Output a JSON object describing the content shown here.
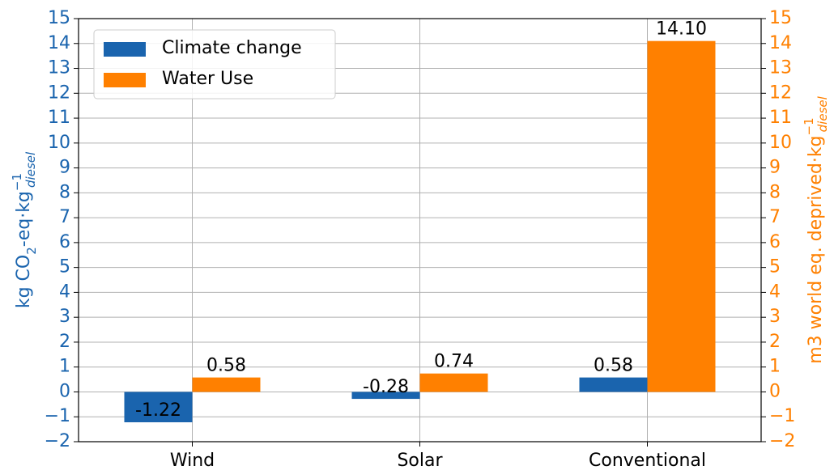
{
  "chart_data": {
    "type": "bar",
    "categories": [
      "Wind",
      "Solar",
      "Conventional"
    ],
    "series": [
      {
        "name": "Climate change",
        "color": "#1a64ae",
        "values": [
          -1.22,
          -0.28,
          0.58
        ],
        "value_labels": [
          "-1.22",
          "-0.28",
          "0.58"
        ]
      },
      {
        "name": "Water Use",
        "color": "#ff8000",
        "axis": "y2",
        "values": [
          0.58,
          0.74,
          14.1
        ],
        "value_labels": [
          "0.58",
          "0.74",
          "14.10"
        ]
      }
    ],
    "y_label": [
      "kg CO",
      "2",
      "-eq·kg",
      "−1",
      "diesel"
    ],
    "y2_label": [
      "m3 world eq. deprived·kg",
      "−1",
      "diesel"
    ],
    "ylim": [
      -2,
      15
    ],
    "yticks": [
      {
        "value": -2,
        "label": "−2"
      },
      {
        "value": -1,
        "label": "−1"
      },
      0,
      1,
      2,
      3,
      4,
      5,
      6,
      7,
      8,
      9,
      10,
      11,
      12,
      13,
      14,
      15
    ],
    "y2lim": [
      -2,
      15
    ],
    "y2ticks": [
      {
        "value": -2,
        "label": "−2"
      },
      {
        "value": -1,
        "label": "−1"
      },
      0,
      1,
      2,
      3,
      4,
      5,
      6,
      7,
      8,
      9,
      10,
      11,
      12,
      13,
      14,
      15
    ],
    "grid": true,
    "legend": "upper left"
  }
}
